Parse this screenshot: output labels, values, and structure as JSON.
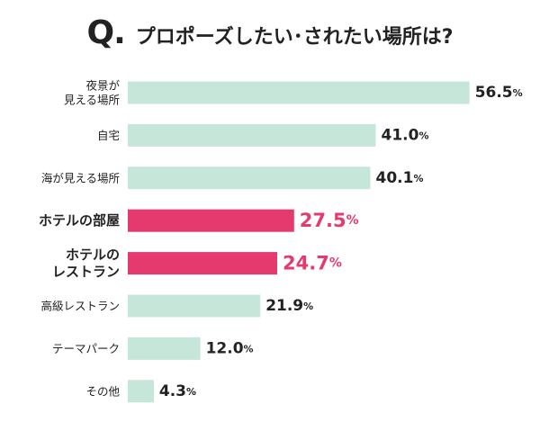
{
  "header": {
    "q_label": "Q.",
    "title": "プロポーズしたい･されたい場所は?"
  },
  "colors": {
    "default_bar": "#c6e6da",
    "highlight_bar": "#e43a6d",
    "default_text": "#222222"
  },
  "chart_data": {
    "type": "bar",
    "orientation": "horizontal",
    "title": "",
    "xlabel": "",
    "ylabel": "",
    "unit": "%",
    "xlim": [
      0,
      60
    ],
    "grid": false,
    "categories": [
      [
        "夜景が",
        "見える場所"
      ],
      [
        "自宅"
      ],
      [
        "海が見える場所"
      ],
      [
        "ホテルの部屋"
      ],
      [
        "ホテルの",
        "レストラン"
      ],
      [
        "高級レストラン"
      ],
      [
        "テーマパーク"
      ],
      [
        "その他"
      ]
    ],
    "values": [
      56.5,
      41.0,
      40.1,
      27.5,
      24.7,
      21.9,
      12.0,
      4.3
    ],
    "highlighted": [
      false,
      false,
      false,
      true,
      true,
      false,
      false,
      false
    ]
  }
}
